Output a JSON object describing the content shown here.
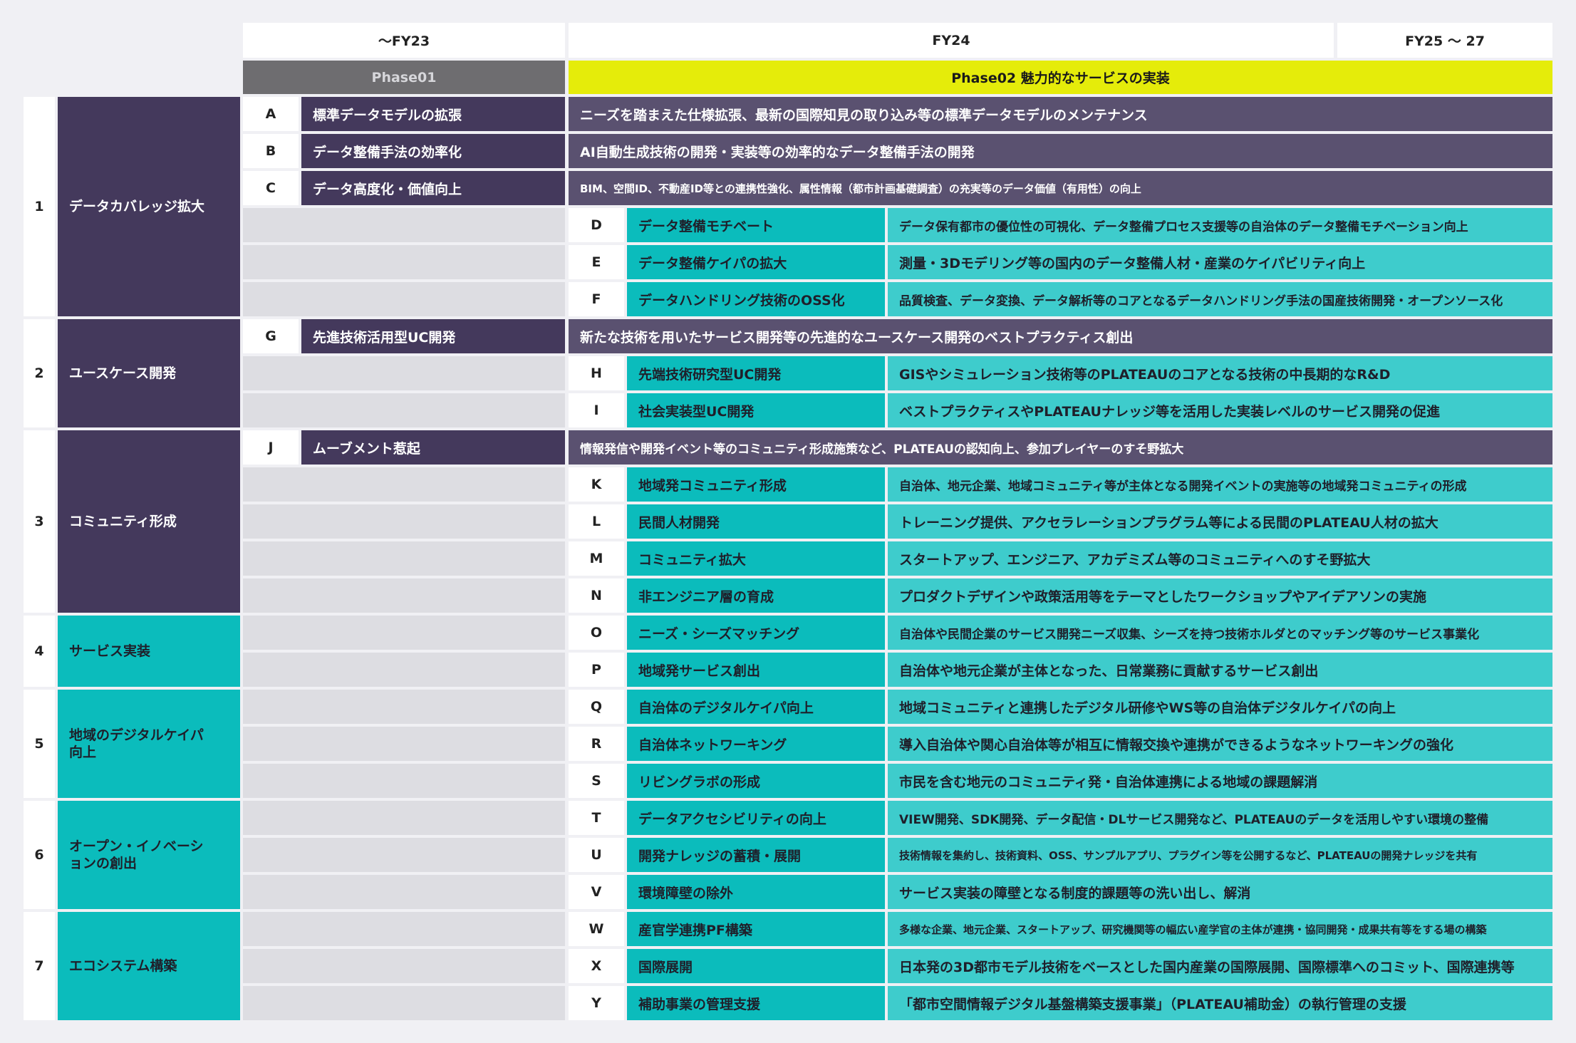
{
  "header": {
    "periods": [
      "〜FY23",
      "FY24",
      "FY25 〜 27"
    ],
    "phase01": "Phase01",
    "phase02": "Phase02 魅力的なサービスの実装"
  },
  "categories": [
    {
      "num": "1",
      "name": "データカバレッジ拡大",
      "color": "purple"
    },
    {
      "num": "2",
      "name": "ユースケース開発",
      "color": "purple"
    },
    {
      "num": "3",
      "name": "コミュニティ形成",
      "color": "purple"
    },
    {
      "num": "4",
      "name": "サービス実装",
      "color": "teal"
    },
    {
      "num": "5",
      "name": "地域のデジタルケイパ向上",
      "color": "teal"
    },
    {
      "num": "6",
      "name": "オープン・イノベーションの創出",
      "color": "teal"
    },
    {
      "num": "7",
      "name": "エコシステム構築",
      "color": "teal"
    }
  ],
  "items": [
    {
      "letter": "A",
      "name": "標準データモデルの拡張",
      "desc": "ニーズを踏まえた仕様拡張、最新の国際知見の取り込み等の標準データモデルのメンテナンス",
      "phase": "01"
    },
    {
      "letter": "B",
      "name": "データ整備手法の効率化",
      "desc": "AI自動生成技術の開発・実装等の効率的なデータ整備手法の開発",
      "phase": "01"
    },
    {
      "letter": "C",
      "name": "データ高度化・価値向上",
      "desc": "BIM、空間ID、不動産ID等との連携性強化、属性情報（都市計画基礎調査）の充実等のデータ価値（有用性）の向上",
      "phase": "01"
    },
    {
      "letter": "D",
      "name": "データ整備モチベート",
      "desc": "データ保有都市の優位性の可視化、データ整備プロセス支援等の自治体のデータ整備モチベーション向上",
      "phase": "02"
    },
    {
      "letter": "E",
      "name": "データ整備ケイパの拡大",
      "desc": "測量・3Dモデリング等の国内のデータ整備人材・産業のケイパビリティ向上",
      "phase": "02"
    },
    {
      "letter": "F",
      "name": "データハンドリング技術のOSS化",
      "desc": "品質検査、データ変換、データ解析等のコアとなるデータハンドリング手法の国産技術開発・オープンソース化",
      "phase": "02"
    },
    {
      "letter": "G",
      "name": "先進技術活用型UC開発",
      "desc": "新たな技術を用いたサービス開発等の先進的なユースケース開発のベストプラクティス創出",
      "phase": "01"
    },
    {
      "letter": "H",
      "name": "先端技術研究型UC開発",
      "desc": "GISやシミュレーション技術等のPLATEAUのコアとなる技術の中長期的なR&D",
      "phase": "02"
    },
    {
      "letter": "I",
      "name": "社会実装型UC開発",
      "desc": "ベストプラクティスやPLATEAUナレッジ等を活用した実装レベルのサービス開発の促進",
      "phase": "02"
    },
    {
      "letter": "J",
      "name": "ムーブメント惹起",
      "desc": "情報発信や開発イベント等のコミュニティ形成施策など、PLATEAUの認知向上、参加プレイヤーのすそ野拡大",
      "phase": "01"
    },
    {
      "letter": "K",
      "name": "地域発コミュニティ形成",
      "desc": "自治体、地元企業、地域コミュニティ等が主体となる開発イベントの実施等の地域発コミュニティの形成",
      "phase": "02"
    },
    {
      "letter": "L",
      "name": "民間人材開発",
      "desc": "トレーニング提供、アクセラレーションプラグラム等による民間のPLATEAU人材の拡大",
      "phase": "02"
    },
    {
      "letter": "M",
      "name": "コミュニティ拡大",
      "desc": "スタートアップ、エンジニア、アカデミズム等のコミュニティへのすそ野拡大",
      "phase": "02"
    },
    {
      "letter": "N",
      "name": "非エンジニア層の育成",
      "desc": "プロダクトデザインや政策活用等をテーマとしたワークショップやアイデアソンの実施",
      "phase": "02"
    },
    {
      "letter": "O",
      "name": "ニーズ・シーズマッチング",
      "desc": "自治体や民間企業のサービス開発ニーズ収集、シーズを持つ技術ホルダとのマッチング等のサービス事業化",
      "phase": "02"
    },
    {
      "letter": "P",
      "name": "地域発サービス創出",
      "desc": "自治体や地元企業が主体となった、日常業務に貢献するサービス創出",
      "phase": "02"
    },
    {
      "letter": "Q",
      "name": "自治体のデジタルケイパ向上",
      "desc": "地域コミュニティと連携したデジタル研修やWS等の自治体デジタルケイパの向上",
      "phase": "02"
    },
    {
      "letter": "R",
      "name": "自治体ネットワーキング",
      "desc": "導入自治体や関心自治体等が相互に情報交換や連携ができるようなネットワーキングの強化",
      "phase": "02"
    },
    {
      "letter": "S",
      "name": "リビングラボの形成",
      "desc": "市民を含む地元のコミュニティ発・自治体連携による地域の課題解消",
      "phase": "02"
    },
    {
      "letter": "T",
      "name": "データアクセシビリティの向上",
      "desc": "VIEW開発、SDK開発、データ配信・DLサービス開発など、PLATEAUのデータを活用しやすい環境の整備",
      "phase": "02"
    },
    {
      "letter": "U",
      "name": "開発ナレッジの蓄積・展開",
      "desc": "技術情報を集約し、技術資料、OSS、サンプルアプリ、プラグイン等を公開するなど、PLATEAUの開発ナレッジを共有",
      "phase": "02"
    },
    {
      "letter": "V",
      "name": "環境障壁の除外",
      "desc": "サービス実装の障壁となる制度的課題等の洗い出し、解消",
      "phase": "02"
    },
    {
      "letter": "W",
      "name": "産官学連携PF構築",
      "desc": "多様な企業、地元企業、スタートアップ、研究機関等の幅広い産学官の主体が連携・協同開発・成果共有等をする場の構築",
      "phase": "02"
    },
    {
      "letter": "X",
      "name": "国際展開",
      "desc": "日本発の3D都市モデル技術をベースとした国内産業の国際展開、国際標準へのコミット、国際連携等",
      "phase": "02"
    },
    {
      "letter": "Y",
      "name": "補助事業の管理支援",
      "desc": "「都市空間情報デジタル基盤構築支援事業」（PLATEAU補助金）の執行管理の支援",
      "phase": "02"
    }
  ]
}
